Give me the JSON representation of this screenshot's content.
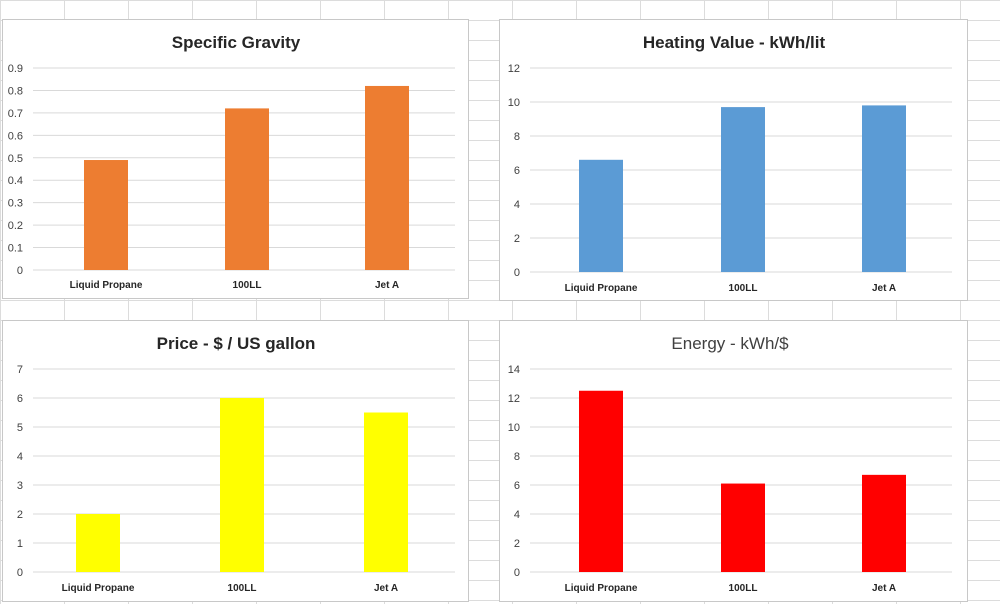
{
  "chart_data": [
    {
      "type": "bar",
      "title": "Specific Gravity",
      "categories": [
        "Liquid Propane",
        "100LL",
        "Jet A"
      ],
      "values": [
        0.49,
        0.72,
        0.82
      ],
      "ylim": [
        0,
        0.9
      ],
      "yticks": [
        "0",
        "0.1",
        "0.2",
        "0.3",
        "0.4",
        "0.5",
        "0.6",
        "0.7",
        "0.8",
        "0.9"
      ],
      "tick_step": 0.1,
      "color": "#ED7D31",
      "grid": true,
      "xlabel": "",
      "ylabel": ""
    },
    {
      "type": "bar",
      "title": "Heating Value - kWh/lit",
      "categories": [
        "Liquid Propane",
        "100LL",
        "Jet A"
      ],
      "values": [
        6.6,
        9.7,
        9.8
      ],
      "ylim": [
        0,
        12
      ],
      "yticks": [
        "0",
        "2",
        "4",
        "6",
        "8",
        "10",
        "12"
      ],
      "tick_step": 2,
      "color": "#5B9BD5",
      "grid": true,
      "xlabel": "",
      "ylabel": ""
    },
    {
      "type": "bar",
      "title": "Price - $ / US gallon",
      "categories": [
        "Liquid Propane",
        "100LL",
        "Jet A"
      ],
      "values": [
        2.0,
        6.0,
        5.5
      ],
      "ylim": [
        0,
        7
      ],
      "yticks": [
        "0",
        "1",
        "2",
        "3",
        "4",
        "5",
        "6",
        "7"
      ],
      "tick_step": 1,
      "color": "#FFFF00",
      "grid": true,
      "xlabel": "",
      "ylabel": ""
    },
    {
      "type": "bar",
      "title": "Energy - kWh/$",
      "categories": [
        "Liquid Propane",
        "100LL",
        "Jet A"
      ],
      "values": [
        12.5,
        6.1,
        6.7
      ],
      "ylim": [
        0,
        14
      ],
      "yticks": [
        "0",
        "2",
        "4",
        "6",
        "8",
        "10",
        "12",
        "14"
      ],
      "tick_step": 2,
      "color": "#FF0000",
      "grid": true,
      "xlabel": "",
      "ylabel": ""
    }
  ]
}
